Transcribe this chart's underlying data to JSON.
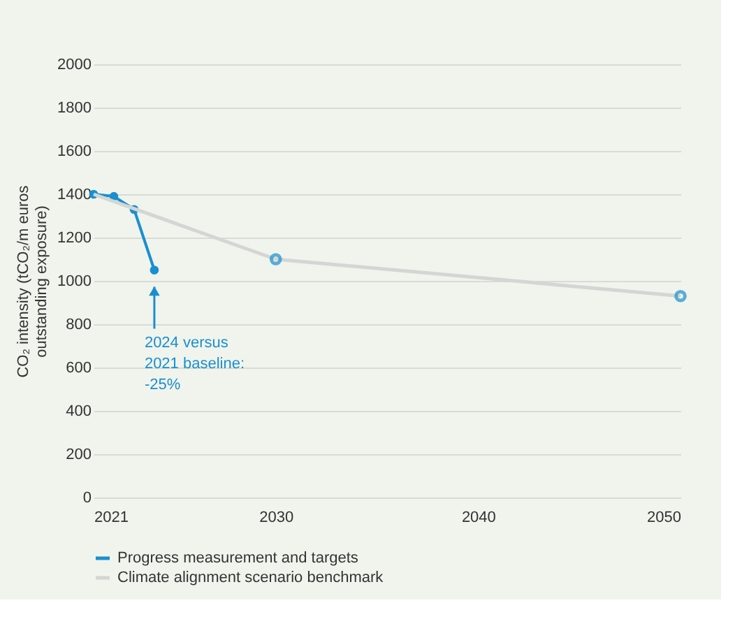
{
  "chart_data": {
    "type": "line",
    "ylabel": "CO₂ intensity (tCO₂/m euros\noutstanding exposure)",
    "xlim": [
      2021,
      2050
    ],
    "xticks": [
      2021,
      2030,
      2040,
      2050
    ],
    "ylim": [
      0,
      2000
    ],
    "yticks": [
      0,
      200,
      400,
      600,
      800,
      1000,
      1200,
      1400,
      1600,
      1800,
      2000
    ],
    "grid": "y",
    "legend": "bottom",
    "marker": "circle",
    "series": [
      {
        "name": "Progress measurement and targets",
        "color": "#1a8fd0",
        "x": [
          2021,
          2022,
          2023,
          2024
        ],
        "values": [
          1400,
          1390,
          1330,
          1050
        ]
      },
      {
        "name": "Climate alignment scenario benchmark",
        "color": "#d3d6d3",
        "marker": "none",
        "x": [
          2021,
          2030,
          2050
        ],
        "values": [
          1400,
          1100,
          930
        ]
      },
      {
        "color": "#1a8fd0",
        "type": "scatter",
        "x": [
          2030,
          2050
        ],
        "values": [
          1100,
          930
        ]
      }
    ],
    "annotations": [
      "2024 versus\n2021 baseline:\n-25%"
    ]
  }
}
